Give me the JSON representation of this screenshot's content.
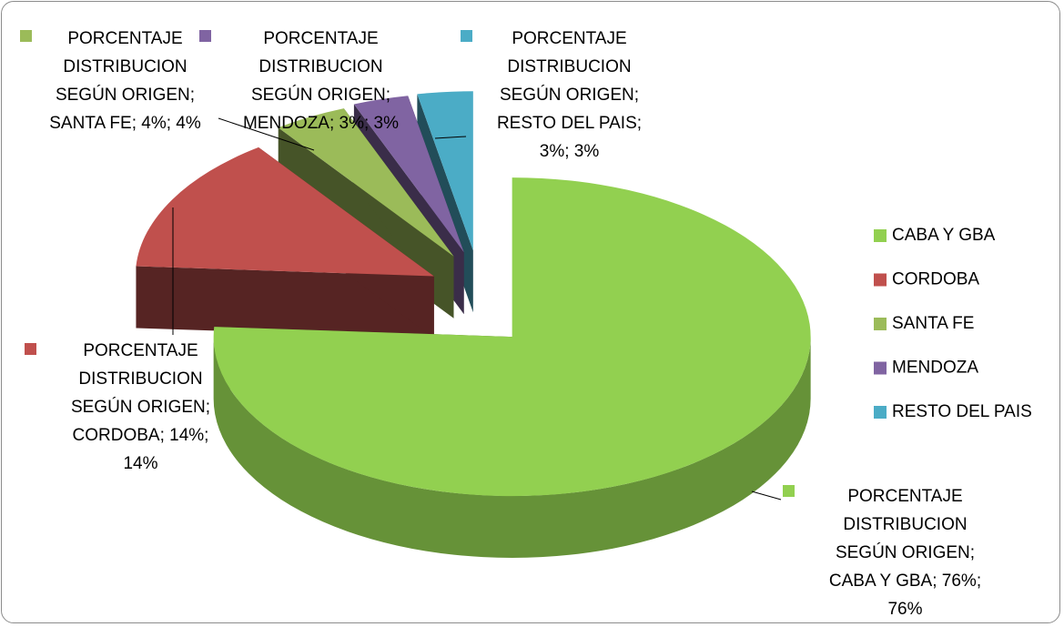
{
  "chart_data": {
    "type": "pie",
    "categories": [
      "CABA Y GBA",
      "CORDOBA",
      "SANTA FE",
      "MENDOZA",
      "RESTO DEL PAIS"
    ],
    "values": [
      76,
      14,
      4,
      3,
      3
    ],
    "value_labels": [
      "PORCENTAJE DISTRIBUCION SEGÚN ORIGEN; CABA Y GBA; 76%; 76%",
      "PORCENTAJE DISTRIBUCION SEGÚN ORIGEN; CORDOBA; 14%; 14%",
      "PORCENTAJE DISTRIBUCION SEGÚN ORIGEN; SANTA FE; 4%; 4%",
      "PORCENTAJE DISTRIBUCION SEGÚN ORIGEN; MENDOZA; 3%; 3%",
      "PORCENTAJE DISTRIBUCION SEGÚN ORIGEN; RESTO DEL PAIS; 3%; 3%"
    ],
    "colors": [
      "#92d050",
      "#c0504d",
      "#9bbb59",
      "#8064a2",
      "#4bacc6"
    ],
    "legend": "right"
  }
}
